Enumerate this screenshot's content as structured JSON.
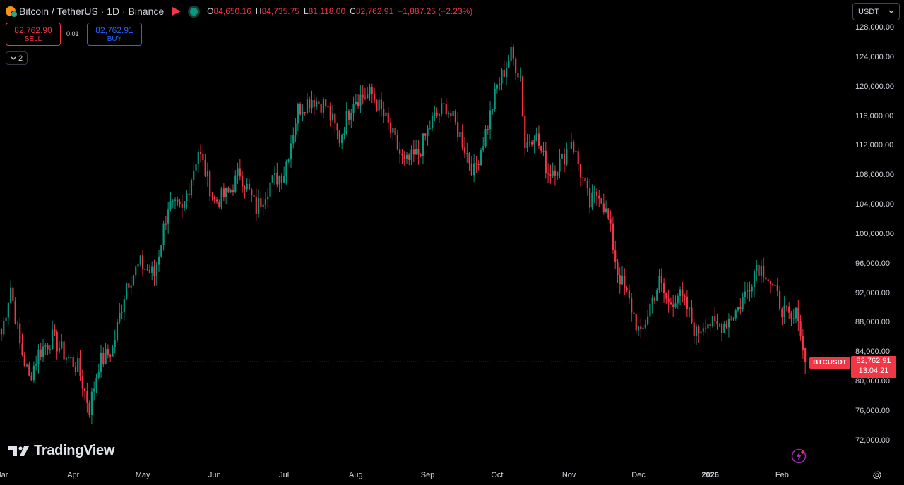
{
  "header": {
    "symbol_title": "Bitcoin / TetherUS · 1D · Binance",
    "ohlc": {
      "o_label": "O",
      "o_value": "84,650.16",
      "h_label": "H",
      "h_value": "84,735.75",
      "l_label": "L",
      "l_value": "81,118.00",
      "c_label": "C",
      "c_value": "82,762.91",
      "change": "−1,887.25 (−2.23%)"
    }
  },
  "trade": {
    "sell_price": "82,762.90",
    "sell_label": "SELL",
    "spread": "0.01",
    "buy_price": "82,762.91",
    "buy_label": "BUY"
  },
  "indicators_toggle": {
    "count": "2"
  },
  "currency_select": {
    "value": "USDT"
  },
  "brand": {
    "name": "TradingView"
  },
  "last_price": {
    "symbol": "BTCUSDT",
    "price": "82,762.91",
    "countdown": "13:04:21"
  },
  "colors": {
    "up": "#089981",
    "down": "#f23645",
    "accent": "#2962ff"
  },
  "icons": {
    "settings": "gear-icon",
    "alert": "lightning-icon"
  },
  "chart_data": {
    "type": "candlestick",
    "ylim": [
      70000,
      129000
    ],
    "y_ticks": [
      "128,000.00",
      "124,000.00",
      "120,000.00",
      "116,000.00",
      "112,000.00",
      "108,000.00",
      "104,000.00",
      "100,000.00",
      "96,000.00",
      "92,000.00",
      "88,000.00",
      "84,000.00",
      "80,000.00",
      "76,000.00",
      "72,000.00"
    ],
    "x_ticks": [
      {
        "label": "Mar",
        "day": 0
      },
      {
        "label": "Apr",
        "day": 31
      },
      {
        "label": "May",
        "day": 61
      },
      {
        "label": "Jun",
        "day": 92
      },
      {
        "label": "Jul",
        "day": 122
      },
      {
        "label": "Aug",
        "day": 153
      },
      {
        "label": "Sep",
        "day": 184
      },
      {
        "label": "Oct",
        "day": 214
      },
      {
        "label": "Nov",
        "day": 245
      },
      {
        "label": "Dec",
        "day": 275
      },
      {
        "label": "2026",
        "day": 306,
        "bold": true
      },
      {
        "label": "Feb",
        "day": 337
      }
    ],
    "close_anchors": [
      [
        0,
        86500
      ],
      [
        4,
        93000
      ],
      [
        8,
        85000
      ],
      [
        12,
        80500
      ],
      [
        16,
        84000
      ],
      [
        22,
        86000
      ],
      [
        28,
        83500
      ],
      [
        33,
        82000
      ],
      [
        38,
        76500
      ],
      [
        42,
        82500
      ],
      [
        48,
        84500
      ],
      [
        54,
        93500
      ],
      [
        60,
        96000
      ],
      [
        66,
        94500
      ],
      [
        72,
        104000
      ],
      [
        78,
        103000
      ],
      [
        85,
        111500
      ],
      [
        92,
        104500
      ],
      [
        98,
        105500
      ],
      [
        103,
        108500
      ],
      [
        110,
        103500
      ],
      [
        116,
        107000
      ],
      [
        122,
        108500
      ],
      [
        128,
        117000
      ],
      [
        134,
        118500
      ],
      [
        140,
        117500
      ],
      [
        146,
        113000
      ],
      [
        152,
        118500
      ],
      [
        160,
        119000
      ],
      [
        166,
        115500
      ],
      [
        174,
        109500
      ],
      [
        180,
        111000
      ],
      [
        186,
        115500
      ],
      [
        192,
        117500
      ],
      [
        198,
        113500
      ],
      [
        204,
        108500
      ],
      [
        210,
        115000
      ],
      [
        214,
        120000
      ],
      [
        220,
        124500
      ],
      [
        224,
        121500
      ],
      [
        226,
        112000
      ],
      [
        230,
        114000
      ],
      [
        236,
        108500
      ],
      [
        242,
        110000
      ],
      [
        246,
        113000
      ],
      [
        250,
        108500
      ],
      [
        254,
        104000
      ],
      [
        258,
        106000
      ],
      [
        262,
        102000
      ],
      [
        266,
        95000
      ],
      [
        272,
        90000
      ],
      [
        276,
        86000
      ],
      [
        280,
        90500
      ],
      [
        284,
        93500
      ],
      [
        288,
        90500
      ],
      [
        292,
        92000
      ],
      [
        296,
        90000
      ],
      [
        300,
        86500
      ],
      [
        304,
        88500
      ],
      [
        308,
        87500
      ],
      [
        312,
        88000
      ],
      [
        318,
        90000
      ],
      [
        322,
        92500
      ],
      [
        326,
        96000
      ],
      [
        330,
        95000
      ],
      [
        334,
        92000
      ],
      [
        338,
        89500
      ],
      [
        341,
        88000
      ],
      [
        344,
        89500
      ],
      [
        346,
        84000
      ],
      [
        347,
        82763
      ]
    ],
    "last_close": 82762.91
  }
}
